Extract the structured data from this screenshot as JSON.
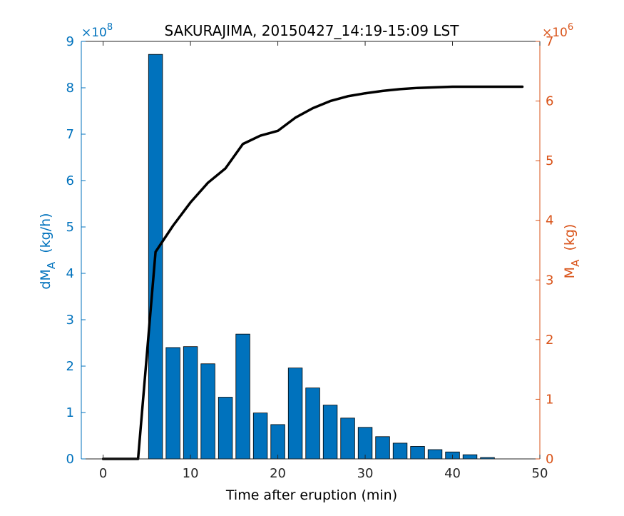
{
  "chart_data": {
    "type": "bar+line",
    "title": "SAKURAJIMA, 20150427_14:19-15:09 LST",
    "xlabel": "Time after eruption (min)",
    "ylabel_left": {
      "base": "dM",
      "sub": "A",
      "rest": "  (kg/h)"
    },
    "ylabel_right": {
      "base": "M",
      "sub": "A",
      "rest": "  (kg)"
    },
    "xlim": [
      -2.5,
      50
    ],
    "xticks": [
      0,
      10,
      20,
      30,
      40,
      50
    ],
    "ylim_left": [
      0,
      9
    ],
    "yticks_left": [
      0,
      1,
      2,
      3,
      4,
      5,
      6,
      7,
      8,
      9
    ],
    "left_multiplier": {
      "base": "×10",
      "exp": "8"
    },
    "ylim_right": [
      0,
      7
    ],
    "yticks_right": [
      0,
      1,
      2,
      3,
      4,
      5,
      6,
      7
    ],
    "right_multiplier": {
      "base": "×10",
      "exp": "6"
    },
    "colors": {
      "bars": "#0072BD",
      "left_axis": "#0072BD",
      "right_axis": "#D95319",
      "line": "#000000"
    },
    "bar_width": 1.6,
    "bars": {
      "x": [
        6,
        8,
        10,
        12,
        14,
        16,
        18,
        20,
        22,
        24,
        26,
        28,
        30,
        32,
        34,
        36,
        38,
        40,
        42,
        44
      ],
      "values": [
        8.72,
        2.4,
        2.42,
        2.05,
        1.33,
        2.69,
        0.99,
        0.74,
        1.96,
        1.53,
        1.16,
        0.88,
        0.68,
        0.48,
        0.34,
        0.27,
        0.2,
        0.15,
        0.09,
        0.03
      ]
    },
    "line": {
      "x": [
        0,
        2,
        4,
        6,
        8,
        10,
        12,
        14,
        16,
        18,
        20,
        22,
        24,
        26,
        28,
        30,
        32,
        34,
        36,
        38,
        40,
        42,
        44,
        46,
        48
      ],
      "values": [
        0,
        0,
        0,
        3.47,
        3.91,
        4.3,
        4.63,
        4.87,
        5.28,
        5.42,
        5.5,
        5.72,
        5.88,
        6.0,
        6.08,
        6.13,
        6.17,
        6.2,
        6.22,
        6.23,
        6.24,
        6.24,
        6.24,
        6.24,
        6.24
      ]
    }
  }
}
